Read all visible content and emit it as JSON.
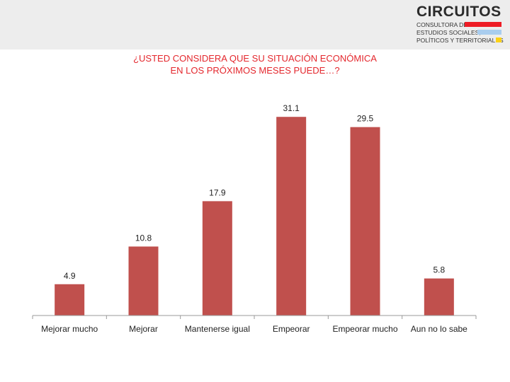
{
  "header": {
    "logo": {
      "name": "CIRCUITOS",
      "lines": [
        "CONSULTORA DE",
        "ESTUDIOS SOCIALES,",
        "POLÍTICOS Y TERRITORIALES"
      ],
      "stripe_colors": [
        "#ee1c25",
        "#a9cdef",
        "#fcd116"
      ]
    }
  },
  "chart_data": {
    "type": "bar",
    "title_lines": [
      "¿USTED CONSIDERA QUE SU SITUACIÓN ECONÓMICA",
      "EN LOS PRÓXIMOS MESES PUEDE…?"
    ],
    "categories": [
      "Mejorar mucho",
      "Mejorar",
      "Mantenerse igual",
      "Empeorar",
      "Empeorar mucho",
      "Aun no lo sabe"
    ],
    "values": [
      4.9,
      10.8,
      17.9,
      31.1,
      29.5,
      5.8
    ],
    "value_labels": [
      "4.9",
      "10.8",
      "17.9",
      "31.1",
      "29.5",
      "5.8"
    ],
    "xlabel": "",
    "ylabel": "",
    "ylim": [
      0,
      35
    ],
    "grid": false,
    "legend": "none",
    "bar_color": "#c0504d",
    "title_color": "#e4272d"
  }
}
